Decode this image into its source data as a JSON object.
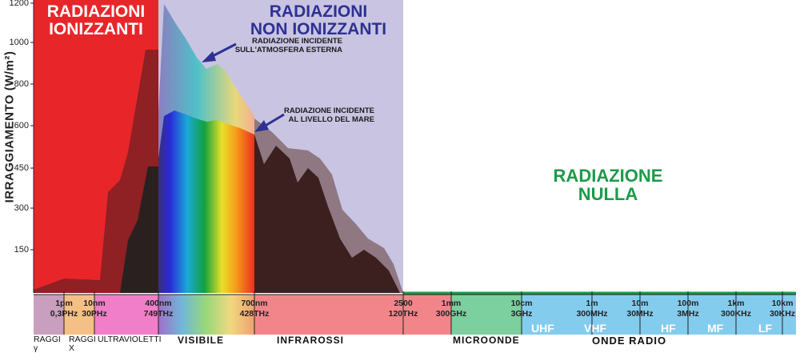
{
  "chart_data": {
    "type": "area",
    "ylabel": "IRRAGGIAMENTO (W/m²)",
    "yticks": [
      "150",
      "300",
      "450",
      "600",
      "800",
      "1000",
      "1200"
    ],
    "ylim": [
      0,
      1200
    ],
    "regions": {
      "ionizing": "RADIAZIONI\nIONIZZANTI",
      "non_ionizing": "RADIAZIONI\nNON IONIZZANTI",
      "null": "RADIAZIONE\nNULLA"
    },
    "annotations": {
      "top_of_atmosphere": "RADIAZIONE INCIDENTE\nSULL'ATMOSFERA ESTERNA",
      "sea_level": "RADIAZIONE INCIDENTE\nAL LIVELLO DEL MARE"
    },
    "frequency_scale": [
      {
        "top": "1pm",
        "bottom": "0,3PHz"
      },
      {
        "top": "10nm",
        "bottom": "30PHz"
      },
      {
        "top": "400nm",
        "bottom": "749THz"
      },
      {
        "top": "700nm",
        "bottom": "428THz"
      },
      {
        "top": "2500",
        "bottom": "120THz"
      },
      {
        "top": "1mm",
        "bottom": "300GHz"
      },
      {
        "top": "10cm",
        "bottom": "3GHz"
      },
      {
        "top": "1m",
        "bottom": "300MHz"
      },
      {
        "top": "10m",
        "bottom": "30MHz"
      },
      {
        "top": "100m",
        "bottom": "3MHz"
      },
      {
        "top": "1km",
        "bottom": "300KHz"
      },
      {
        "top": "10km",
        "bottom": "30KHz"
      }
    ],
    "radio_bands": [
      "UHF",
      "VHF",
      "HF",
      "MF",
      "LF"
    ],
    "bands": [
      "RAGGI\nγ",
      "RAGGI\nX",
      "ULTRAVIOLETTI",
      "VISIBILE",
      "INFRAROSSI",
      "MICROONDE",
      "ONDE RADIO"
    ],
    "colors": {
      "ionizing_bg": "#e8262a",
      "non_ionizing_bg": "#c8c4e2",
      "null_text": "#1d9a4a",
      "non_ionizing_text": "#2e3192",
      "arrow": "#2e3192"
    }
  }
}
